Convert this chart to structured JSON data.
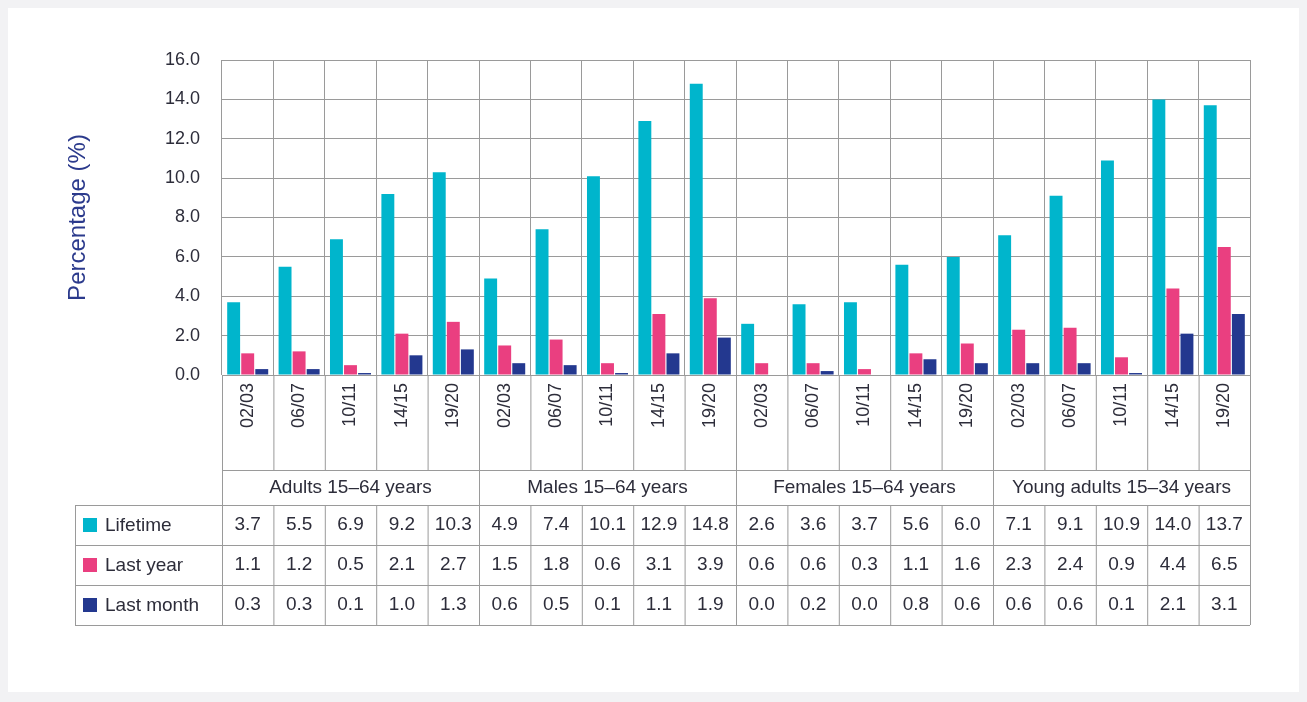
{
  "chart_data": {
    "type": "bar",
    "ylabel": "Percentage (%)",
    "categories": [
      "02/03",
      "06/07",
      "10/11",
      "14/15",
      "19/20",
      "02/03",
      "06/07",
      "10/11",
      "14/15",
      "19/20",
      "02/03",
      "06/07",
      "10/11",
      "14/15",
      "19/20",
      "02/03",
      "06/07",
      "10/11",
      "14/15",
      "19/20"
    ],
    "series": [
      {
        "name": "Lifetime",
        "color": "#00b5cc",
        "values": [
          3.7,
          5.5,
          6.9,
          9.2,
          10.3,
          4.9,
          7.4,
          10.1,
          12.9,
          14.8,
          2.6,
          3.6,
          3.7,
          5.6,
          6.0,
          7.1,
          9.1,
          10.9,
          14.0,
          13.7
        ],
        "value_labels": [
          "3.7",
          "5.5",
          "6.9",
          "9.2",
          "10.3",
          "4.9",
          "7.4",
          "10.1",
          "12.9",
          "14.8",
          "2.6",
          "3.6",
          "3.7",
          "5.6",
          "6.0",
          "7.1",
          "9.1",
          "10.9",
          "14.0",
          "13.7"
        ]
      },
      {
        "name": "Last year",
        "color": "#ea3f80",
        "values": [
          1.1,
          1.2,
          0.5,
          2.1,
          2.7,
          1.5,
          1.8,
          0.6,
          3.1,
          3.9,
          0.6,
          0.6,
          0.3,
          1.1,
          1.6,
          2.3,
          2.4,
          0.9,
          4.4,
          6.5
        ],
        "value_labels": [
          "1.1",
          "1.2",
          "0.5",
          "2.1",
          "2.7",
          "1.5",
          "1.8",
          "0.6",
          "3.1",
          "3.9",
          "0.6",
          "0.6",
          "0.3",
          "1.1",
          "1.6",
          "2.3",
          "2.4",
          "0.9",
          "4.4",
          "6.5"
        ]
      },
      {
        "name": "Last month",
        "color": "#23388f",
        "values": [
          0.3,
          0.3,
          0.1,
          1.0,
          1.3,
          0.6,
          0.5,
          0.1,
          1.1,
          1.9,
          0.0,
          0.2,
          0.0,
          0.8,
          0.6,
          0.6,
          0.6,
          0.1,
          2.1,
          3.1
        ],
        "value_labels": [
          "0.3",
          "0.3",
          "0.1",
          "1.0",
          "1.3",
          "0.6",
          "0.5",
          "0.1",
          "1.1",
          "1.9",
          "0.0",
          "0.2",
          "0.0",
          "0.8",
          "0.6",
          "0.6",
          "0.6",
          "0.1",
          "2.1",
          "3.1"
        ]
      }
    ],
    "ylim": [
      0,
      16
    ],
    "yticks": [
      {
        "value": 0,
        "label": "0.0"
      },
      {
        "value": 2,
        "label": "2.0"
      },
      {
        "value": 4,
        "label": "4.0"
      },
      {
        "value": 6,
        "label": "6.0"
      },
      {
        "value": 8,
        "label": "8.0"
      },
      {
        "value": 10,
        "label": "10.0"
      },
      {
        "value": 12,
        "label": "12.0"
      },
      {
        "value": 14,
        "label": "14.0"
      },
      {
        "value": 16,
        "label": "16.0"
      }
    ],
    "grid": true,
    "legend": "bottom",
    "annotations": [
      "Adults 15–64 years",
      "Males 15–64 years",
      "Females 15–64 years",
      "Young adults 15–34 years"
    ]
  }
}
